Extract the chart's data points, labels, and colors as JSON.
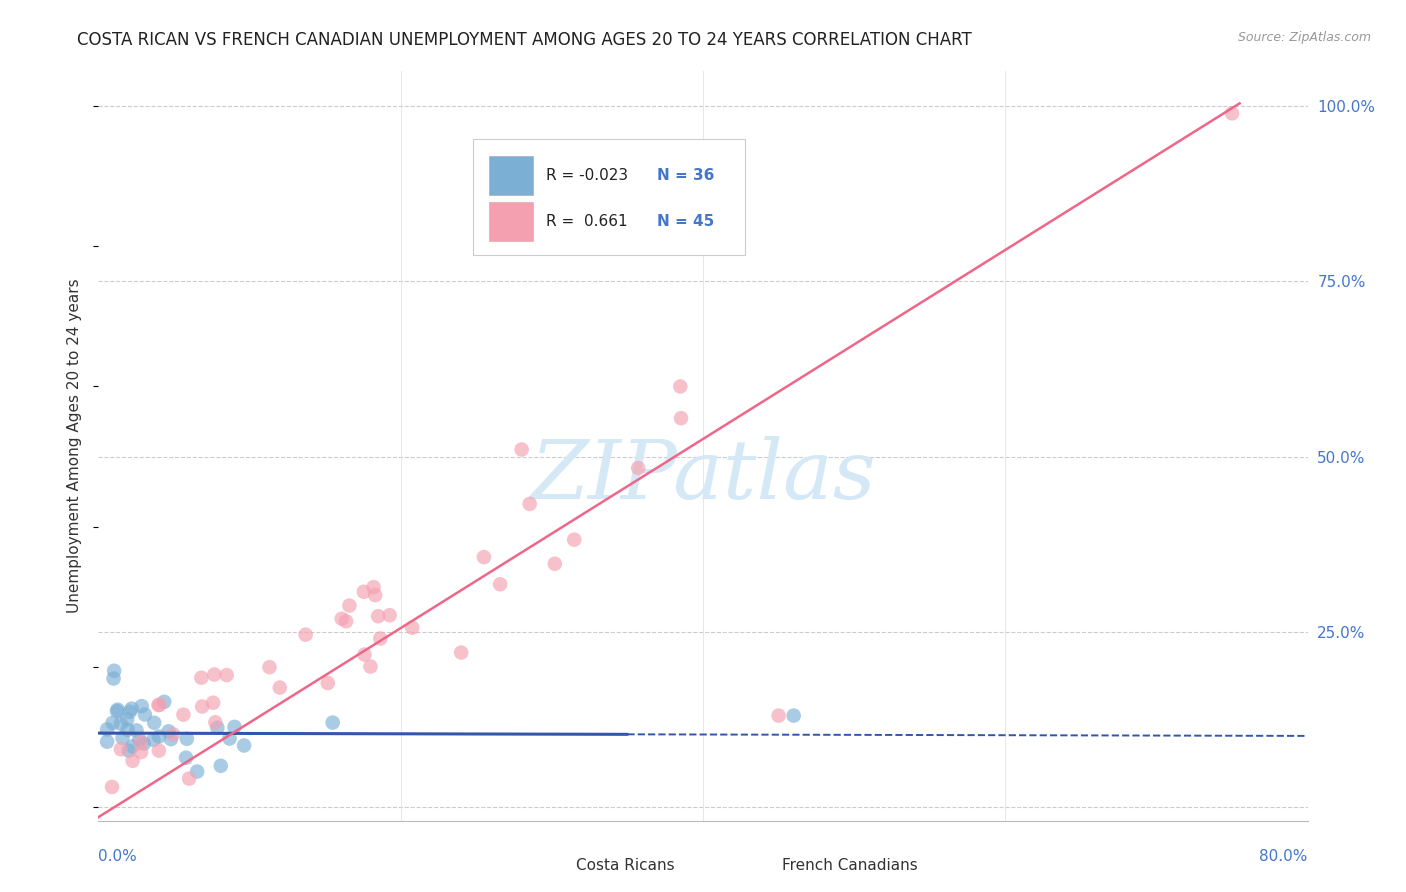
{
  "title": "COSTA RICAN VS FRENCH CANADIAN UNEMPLOYMENT AMONG AGES 20 TO 24 YEARS CORRELATION CHART",
  "source": "Source: ZipAtlas.com",
  "ylabel": "Unemployment Among Ages 20 to 24 years",
  "legend_label1": "Costa Ricans",
  "legend_label2": "French Canadians",
  "xlim": [
    0.0,
    0.8
  ],
  "ylim": [
    -0.02,
    1.05
  ],
  "yticks": [
    0.0,
    0.25,
    0.5,
    0.75,
    1.0
  ],
  "ytick_labels": [
    "",
    "25.0%",
    "50.0%",
    "75.0%",
    "100.0%"
  ],
  "xticks": [
    0.0,
    0.2,
    0.4,
    0.6,
    0.8
  ],
  "color_blue": "#7BAFD4",
  "color_pink": "#F4A0B0",
  "color_blue_line": "#3355AA",
  "color_pink_line": "#EE6688",
  "watermark_color": "#D5E8F5",
  "background_color": "#FFFFFF",
  "title_fontsize": 12,
  "axis_label_fontsize": 11,
  "tick_fontsize": 11
}
